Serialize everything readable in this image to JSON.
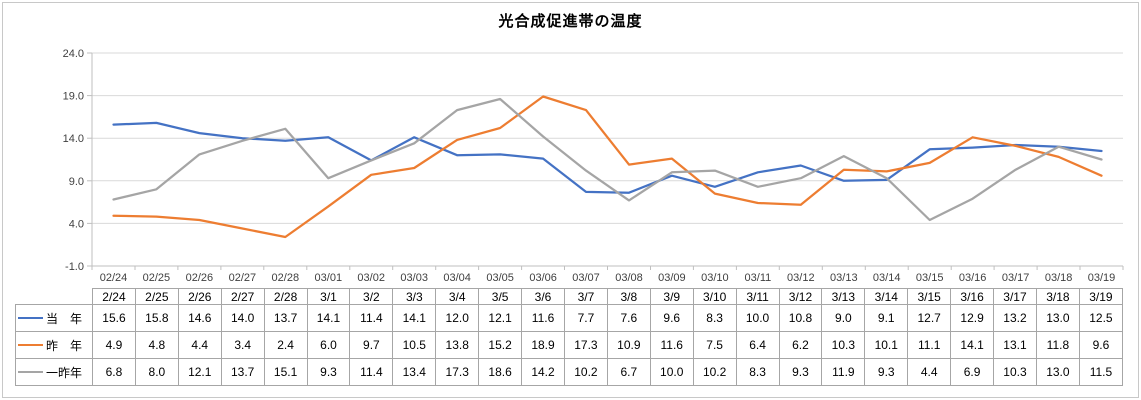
{
  "colors": {
    "series_current_year": "#4472C4",
    "series_last_year": "#ED7D31",
    "series_two_years_ago": "#A5A5A5",
    "gridline": "#D9D9D9",
    "axis": "#BFBFBF",
    "axis_text": "#404040",
    "table_border": "#A6A6A6",
    "frame_border": "#C8C8C8"
  },
  "chart_data": {
    "type": "line",
    "title": "光合成促進帯の温度",
    "categories": [
      "02/24",
      "02/25",
      "02/26",
      "02/27",
      "02/28",
      "03/01",
      "03/02",
      "03/03",
      "03/04",
      "03/05",
      "03/06",
      "03/07",
      "03/08",
      "03/09",
      "03/10",
      "03/11",
      "03/12",
      "03/13",
      "03/14",
      "03/15",
      "03/16",
      "03/17",
      "03/18",
      "03/19"
    ],
    "series": [
      {
        "id": "current-year",
        "name": "当　年",
        "color": "#4472C4",
        "values": [
          15.6,
          15.8,
          14.6,
          14.0,
          13.7,
          14.1,
          11.4,
          14.1,
          12.0,
          12.1,
          11.6,
          7.7,
          7.6,
          9.6,
          8.3,
          10.0,
          10.8,
          9.0,
          9.1,
          12.7,
          12.9,
          13.2,
          13.0,
          12.5
        ]
      },
      {
        "id": "last-year",
        "name": "昨　年",
        "color": "#ED7D31",
        "values": [
          4.9,
          4.8,
          4.4,
          3.4,
          2.4,
          6.0,
          9.7,
          10.5,
          13.8,
          15.2,
          18.9,
          17.3,
          10.9,
          11.6,
          7.5,
          6.4,
          6.2,
          10.3,
          10.1,
          11.1,
          14.1,
          13.1,
          11.8,
          9.6
        ]
      },
      {
        "id": "two-years-ago",
        "name": "一昨年",
        "color": "#A5A5A5",
        "values": [
          6.8,
          8.0,
          12.1,
          13.7,
          15.1,
          9.3,
          11.4,
          13.4,
          17.3,
          18.6,
          14.2,
          10.2,
          6.7,
          10.0,
          10.2,
          8.3,
          9.3,
          11.9,
          9.3,
          4.4,
          6.9,
          10.3,
          13.0,
          11.5
        ]
      }
    ],
    "xlabel": "",
    "ylabel": "",
    "ylim": [
      -1.0,
      24.0
    ],
    "y_ticks": [
      24.0,
      19.0,
      14.0,
      9.0,
      4.0,
      -1.0
    ],
    "grid": true,
    "legend_position": "table-left-column"
  },
  "table": {
    "header_dates": [
      "2/24",
      "2/25",
      "2/26",
      "2/27",
      "2/28",
      "3/1",
      "3/2",
      "3/3",
      "3/4",
      "3/5",
      "3/6",
      "3/7",
      "3/8",
      "3/9",
      "3/10",
      "3/11",
      "3/12",
      "3/13",
      "3/14",
      "3/15",
      "3/16",
      "3/17",
      "3/18",
      "3/19"
    ]
  }
}
